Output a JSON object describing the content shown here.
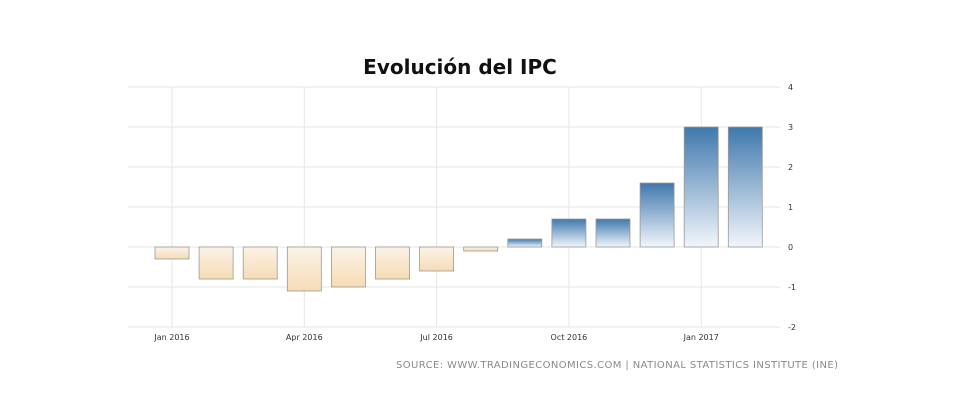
{
  "chart_data": {
    "type": "bar",
    "title": "Evolución del IPC",
    "xlabel": "",
    "ylabel": "",
    "categories": [
      "Jan 2016",
      "Feb 2016",
      "Mar 2016",
      "Apr 2016",
      "May 2016",
      "Jun 2016",
      "Jul 2016",
      "Aug 2016",
      "Sep 2016",
      "Oct 2016",
      "Nov 2016",
      "Dec 2016",
      "Jan 2017",
      "Feb 2017"
    ],
    "values": [
      -0.3,
      -0.8,
      -0.8,
      -1.1,
      -1.0,
      -0.8,
      -0.6,
      -0.1,
      0.2,
      0.7,
      0.7,
      1.6,
      3.0,
      3.0
    ],
    "ylim": [
      -2,
      4
    ],
    "y_ticks": [
      "4",
      "3",
      "2",
      "1",
      "0",
      "-1",
      "-2"
    ],
    "x_tick_labels": [
      {
        "label": "Jan 2016",
        "index": 0
      },
      {
        "label": "Apr 2016",
        "index": 3
      },
      {
        "label": "Jul 2016",
        "index": 6
      },
      {
        "label": "Oct 2016",
        "index": 9
      },
      {
        "label": "Jan 2017",
        "index": 12
      }
    ],
    "y_axis_side": "right",
    "grid": true,
    "legend": "none",
    "colors": {
      "positive_top": "#3f78ad",
      "positive_bottom": "#f2f6fb",
      "negative_top": "#fbf3e8",
      "negative_bottom": "#f6dcb5",
      "grid": "#e6e6e6"
    }
  },
  "source": "SOURCE: WWW.TRADINGECONOMICS.COM | NATIONAL STATISTICS INSTITUTE (INE)"
}
